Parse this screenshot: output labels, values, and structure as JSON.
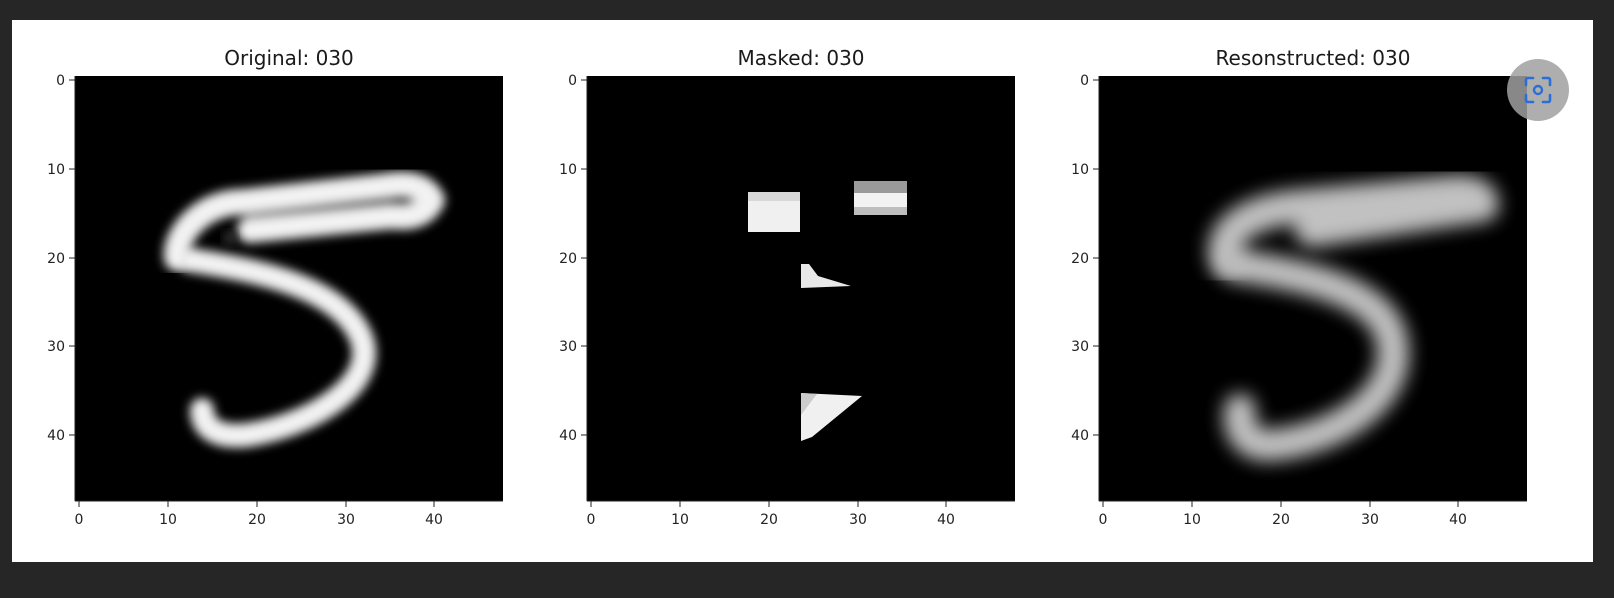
{
  "figure": {
    "panels": [
      {
        "id": "original",
        "title": "Original: 030"
      },
      {
        "id": "masked",
        "title": "Masked: 030"
      },
      {
        "id": "reconstructed",
        "title": "Resonstructed: 030"
      }
    ],
    "image_size": 48,
    "x_ticks": [
      "0",
      "10",
      "20",
      "30",
      "40"
    ],
    "y_ticks": [
      "0",
      "10",
      "20",
      "30",
      "40"
    ]
  },
  "overlay": {
    "lens_button": {
      "icon": "lens-scan-icon",
      "color": "#2b6fd6"
    }
  },
  "colors": {
    "background": "#262626",
    "card": "#ffffff"
  }
}
